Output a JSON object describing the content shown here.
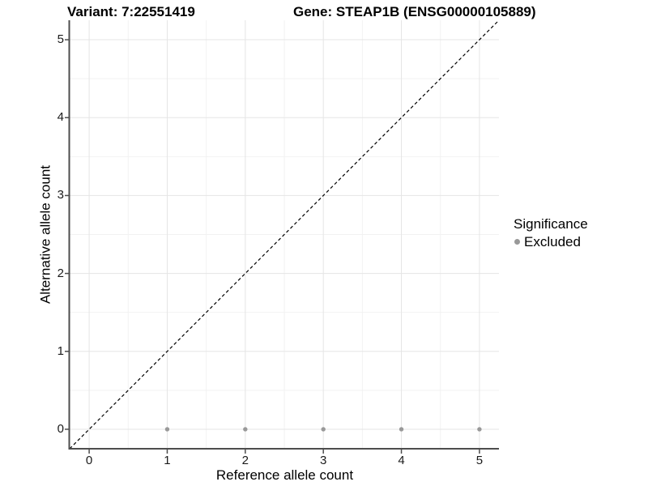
{
  "titles": {
    "variant": "Variant: 7:22551419",
    "gene": "Gene: STEAP1B (ENSG00000105889)"
  },
  "chart_data": {
    "type": "scatter",
    "title_left": "Variant: 7:22551419",
    "title_right": "Gene: STEAP1B (ENSG00000105889)",
    "xlabel": "Reference allele count",
    "ylabel": "Alternative allele count",
    "xlim": [
      -0.25,
      5.25
    ],
    "ylim": [
      -0.25,
      5.25
    ],
    "xticks": [
      0,
      1,
      2,
      3,
      4,
      5
    ],
    "yticks": [
      0,
      1,
      2,
      3,
      4,
      5
    ],
    "grid": "major and minor, light gray on white",
    "series": [
      {
        "name": "Excluded",
        "color": "#999999",
        "points": [
          [
            1,
            0
          ],
          [
            2,
            0
          ],
          [
            3,
            0
          ],
          [
            4,
            0
          ],
          [
            5,
            0
          ]
        ]
      }
    ],
    "reference_line": {
      "description": "identity line y = x",
      "style": "dashed",
      "color": "#000000",
      "from": [
        -0.25,
        -0.25
      ],
      "to": [
        5.25,
        5.25
      ]
    },
    "legend": {
      "position": "right",
      "title": "Significance",
      "items": [
        {
          "label": "Excluded",
          "color": "#999999"
        }
      ]
    }
  },
  "style": {
    "background": "#ffffff",
    "point_color": "#999999",
    "point_radius": 2.7,
    "reference_line_color": "#000000",
    "axis_line_color": "#4d4d4d",
    "tick_label_color": "#1a1a1a",
    "grid_major_color": "#e5e5e5",
    "grid_minor_color": "#f2f2f2"
  }
}
